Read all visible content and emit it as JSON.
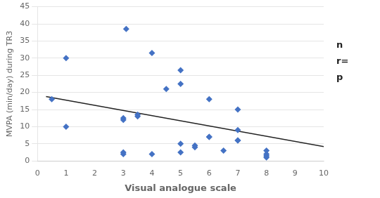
{
  "chart_data": {
    "type": "scatter",
    "xlabel": "Visual analogue scale",
    "ylabel": "MVPA (min/day) during TR3",
    "xlim": [
      0,
      10
    ],
    "ylim": [
      0,
      45
    ],
    "xticks": [
      0,
      1,
      2,
      3,
      4,
      5,
      6,
      7,
      8,
      9,
      10
    ],
    "yticks": [
      0,
      5,
      10,
      15,
      20,
      25,
      30,
      35,
      40,
      45
    ],
    "grid": "y",
    "series": [
      {
        "type": "scatter",
        "marker": "diamond",
        "color": "#4472C4",
        "x": [
          0.5,
          1.0,
          1.0,
          3.0,
          3.0,
          3.0,
          3.0,
          3.1,
          3.5,
          3.5,
          4.0,
          4.0,
          4.5,
          5.0,
          5.0,
          5.0,
          5.0,
          5.5,
          5.5,
          6.0,
          6.0,
          6.0,
          6.5,
          7.0,
          7.0,
          7.0,
          7.0,
          8.0,
          8.0,
          8.0,
          8.0
        ],
        "values": [
          18.0,
          30.0,
          10.0,
          12.5,
          12.0,
          2.0,
          2.5,
          38.5,
          13.0,
          13.5,
          31.5,
          2.0,
          21.0,
          5.0,
          2.5,
          26.5,
          22.5,
          4.5,
          4.0,
          7.0,
          7.0,
          18.0,
          3.0,
          6.0,
          6.0,
          15.0,
          9.0,
          2.0,
          1.0,
          1.5,
          3.0
        ]
      },
      {
        "type": "line",
        "color": "#222222",
        "x": [
          0.3,
          10.0
        ],
        "values": [
          18.8,
          4.2
        ]
      }
    ],
    "annotations": [
      "n",
      "r=",
      "p"
    ]
  }
}
